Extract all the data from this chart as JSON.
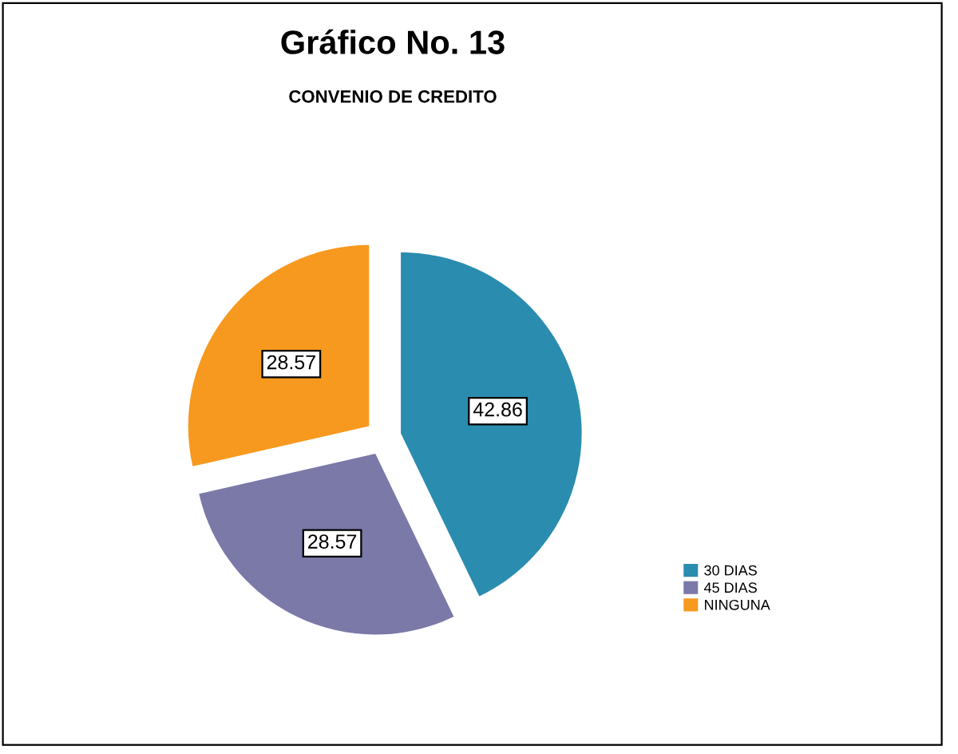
{
  "chart_data": {
    "type": "pie",
    "title": "Gráfico No. 13",
    "subtitle": "CONVENIO DE CREDITO",
    "categories": [
      "30 DIAS",
      "45 DIAS",
      "NINGUNA"
    ],
    "values": [
      42.86,
      28.57,
      28.57
    ],
    "colors": [
      "#2a8caf",
      "#7b79a8",
      "#f7991e"
    ],
    "data_labels": true,
    "legend": "right"
  }
}
